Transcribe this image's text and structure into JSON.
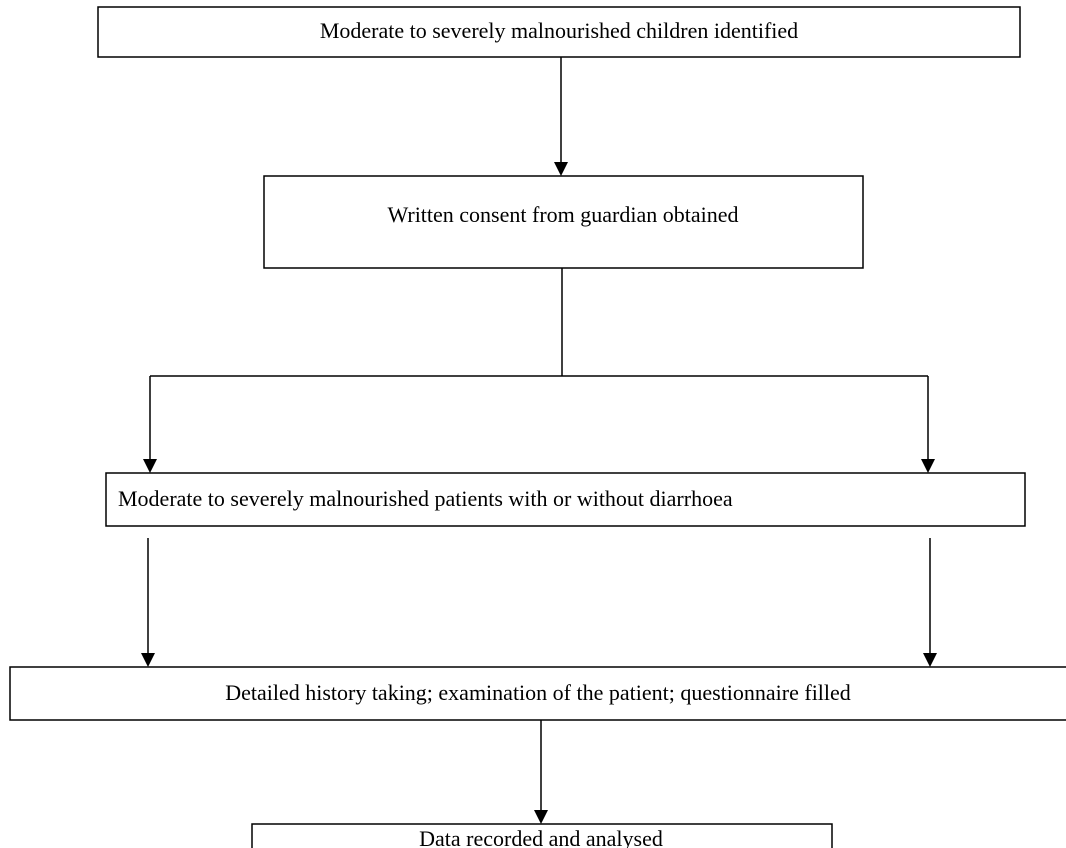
{
  "nodes": [
    {
      "label": "Moderate to severely malnourished children identified"
    },
    {
      "label": "Written consent from guardian obtained"
    },
    {
      "label": "Moderate to severely malnourished patients with or without diarrhoea"
    },
    {
      "label": "Detailed history taking; examination of the patient; questionnaire filled"
    },
    {
      "label": "Data recorded and analysed"
    }
  ]
}
